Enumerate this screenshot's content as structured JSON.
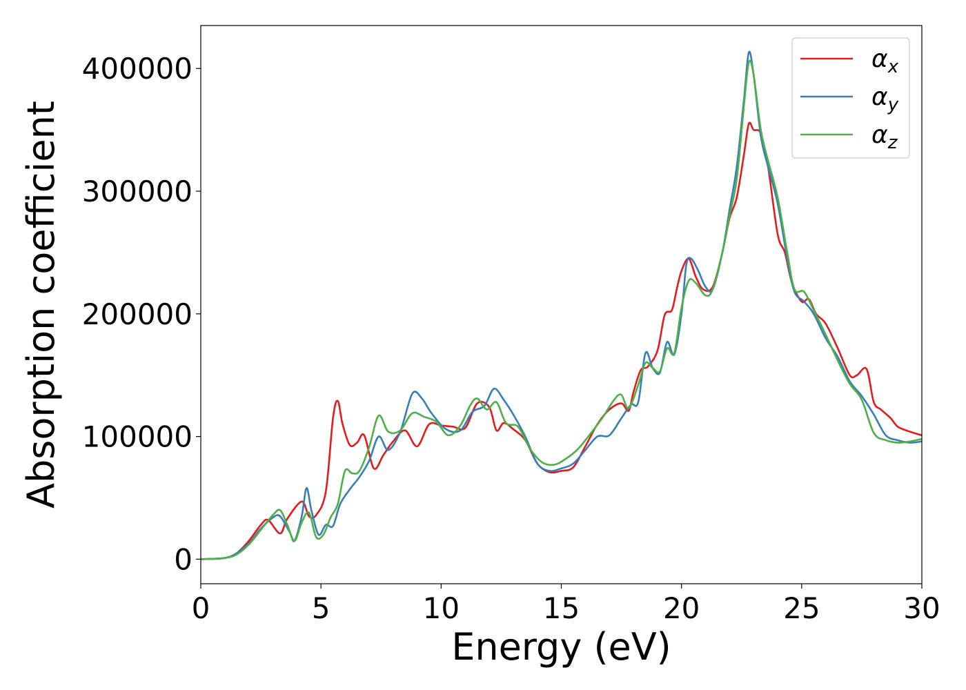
{
  "chart_data": {
    "type": "line",
    "title": "",
    "xlabel": "Energy (eV)",
    "ylabel": "Absorption coefficient",
    "xlim": [
      0,
      30
    ],
    "ylim": [
      -20000,
      435000
    ],
    "xticks": [
      0,
      5,
      10,
      15,
      20,
      25,
      30
    ],
    "xtick_labels": [
      "0",
      "5",
      "10",
      "15",
      "20",
      "25",
      "30"
    ],
    "yticks": [
      0,
      100000,
      200000,
      300000,
      400000
    ],
    "ytick_labels": [
      "0",
      "100000",
      "200000",
      "300000",
      "400000"
    ],
    "grid": false,
    "legend": {
      "placement": "top-right"
    },
    "series": [
      {
        "name": "α",
        "subscript": "x",
        "color": "#e41a1c",
        "x": [
          0,
          1,
          1.5,
          2,
          2.5,
          2.8,
          3.3,
          3.6,
          4.2,
          4.5,
          4.8,
          5.2,
          5.5,
          5.7,
          5.9,
          6.2,
          6.5,
          6.8,
          7.2,
          7.6,
          8,
          8.5,
          9,
          9.5,
          10,
          10.5,
          11,
          11.5,
          12,
          12.3,
          12.6,
          13,
          13.5,
          14,
          14.5,
          15,
          15.5,
          16,
          16.5,
          17,
          17.5,
          17.8,
          18,
          18.3,
          18.6,
          19,
          19.3,
          19.6,
          19.8,
          20,
          20.3,
          20.6,
          20.9,
          21.3,
          21.7,
          22,
          22.3,
          22.6,
          22.8,
          23,
          23.3,
          23.6,
          24,
          24.3,
          24.6,
          25,
          25.3,
          25.6,
          26,
          26.5,
          27,
          27.3,
          27.7,
          28,
          28.3,
          28.7,
          29,
          29.5,
          30
        ],
        "values": [
          0,
          1000,
          5000,
          15000,
          28000,
          32000,
          21000,
          33000,
          47000,
          35000,
          36000,
          55000,
          115000,
          129000,
          110000,
          93000,
          95000,
          101000,
          74000,
          85000,
          96000,
          105000,
          92000,
          110000,
          109000,
          108000,
          107000,
          127000,
          124000,
          105000,
          111000,
          106000,
          97000,
          78000,
          71000,
          72000,
          75000,
          92000,
          110000,
          122000,
          127000,
          121000,
          136000,
          154000,
          157000,
          170000,
          199000,
          203000,
          220000,
          235000,
          245000,
          230000,
          220000,
          222000,
          250000,
          278000,
          295000,
          330000,
          355000,
          350000,
          347000,
          320000,
          265000,
          250000,
          225000,
          210000,
          212000,
          200000,
          192000,
          172000,
          150000,
          150000,
          155000,
          128000,
          122000,
          115000,
          108000,
          104000,
          101000
        ]
      },
      {
        "name": "α",
        "subscript": "y",
        "color": "#377eb8",
        "x": [
          0,
          1,
          1.5,
          2,
          2.5,
          3,
          3.3,
          3.7,
          3.9,
          4.2,
          4.4,
          4.6,
          4.9,
          5.2,
          5.5,
          5.8,
          6.2,
          6.6,
          7,
          7.4,
          7.8,
          8.3,
          8.8,
          9.2,
          9.6,
          10.2,
          10.8,
          11.3,
          11.8,
          12.2,
          12.6,
          13,
          13.5,
          14,
          14.5,
          15,
          15.5,
          16,
          16.5,
          17,
          17.5,
          17.9,
          18.2,
          18.5,
          18.8,
          19.1,
          19.4,
          19.7,
          20,
          20.2,
          20.4,
          20.7,
          21,
          21.3,
          21.7,
          22,
          22.3,
          22.6,
          22.8,
          23,
          23.3,
          23.6,
          24,
          24.4,
          24.7,
          25.1,
          25.5,
          26,
          26.5,
          27,
          27.5,
          28,
          28.5,
          29,
          29.5,
          30
        ],
        "values": [
          0,
          1000,
          5000,
          13000,
          25000,
          34000,
          35000,
          22000,
          15000,
          35000,
          58000,
          40000,
          20000,
          28000,
          27000,
          45000,
          57000,
          67000,
          80000,
          100000,
          89000,
          104000,
          135000,
          131000,
          119000,
          106000,
          105000,
          120000,
          125000,
          139000,
          130000,
          118000,
          100000,
          78000,
          72000,
          74000,
          78000,
          89000,
          100000,
          101000,
          115000,
          126000,
          128000,
          168000,
          156000,
          152000,
          177000,
          167000,
          200000,
          240000,
          245000,
          235000,
          222000,
          220000,
          250000,
          285000,
          320000,
          375000,
          413000,
          395000,
          345000,
          320000,
          290000,
          245000,
          218000,
          210000,
          200000,
          180000,
          165000,
          145000,
          133000,
          118000,
          101000,
          97000,
          95000,
          96000
        ]
      },
      {
        "name": "α",
        "subscript": "z",
        "color": "#4daf4a",
        "x": [
          0,
          1,
          1.5,
          2,
          2.5,
          3,
          3.3,
          3.6,
          3.9,
          4.2,
          4.5,
          4.8,
          5.1,
          5.4,
          5.7,
          6,
          6.3,
          6.6,
          7,
          7.4,
          7.8,
          8.3,
          8.8,
          9.3,
          9.8,
          10.3,
          10.8,
          11.2,
          11.5,
          11.9,
          12.3,
          12.7,
          13.2,
          13.7,
          14.2,
          14.7,
          15.2,
          15.7,
          16.2,
          16.7,
          17.2,
          17.5,
          17.8,
          18.2,
          18.5,
          18.8,
          19.1,
          19.4,
          19.7,
          20,
          20.3,
          20.6,
          21,
          21.3,
          21.7,
          22,
          22.3,
          22.6,
          22.8,
          23,
          23.3,
          23.6,
          24,
          24.4,
          24.7,
          25.1,
          25.5,
          26,
          26.5,
          27,
          27.5,
          28,
          28.5,
          29,
          29.5,
          30
        ],
        "values": [
          0,
          1000,
          4000,
          12000,
          24000,
          36000,
          40000,
          28000,
          15000,
          30000,
          38000,
          18000,
          20000,
          34000,
          45000,
          72000,
          70000,
          72000,
          91000,
          117000,
          104000,
          105000,
          119000,
          116000,
          112000,
          101000,
          109000,
          125000,
          131000,
          122000,
          128000,
          111000,
          108000,
          90000,
          79000,
          77000,
          82000,
          90000,
          102000,
          115000,
          130000,
          134000,
          123000,
          142000,
          160000,
          156000,
          153000,
          172000,
          168000,
          205000,
          227000,
          225000,
          215000,
          220000,
          250000,
          280000,
          310000,
          370000,
          405000,
          395000,
          350000,
          325000,
          295000,
          250000,
          220000,
          218000,
          203000,
          183000,
          162000,
          143000,
          130000,
          103000,
          97000,
          95000,
          96000,
          98000
        ]
      }
    ]
  }
}
